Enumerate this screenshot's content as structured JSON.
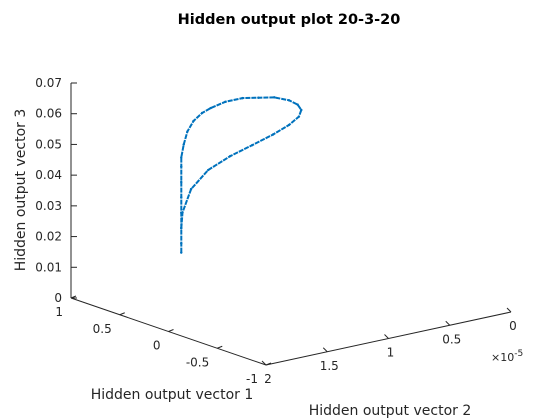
{
  "chart_data": {
    "type": "line3d",
    "title": "Hidden output plot 20-3-20",
    "xlabel": "Hidden output vector 1",
    "ylabel": "Hidden output vector 2",
    "zlabel": "Hidden output vector 3",
    "y_exponent_label": "×10",
    "y_exponent_power": "-5",
    "x_ticks": [
      "1",
      "0.5",
      "0",
      "-0.5",
      "-1"
    ],
    "y_ticks": [
      "2",
      "1.5",
      "1",
      "0.5",
      "0"
    ],
    "z_ticks": [
      "0",
      "0.01",
      "0.02",
      "0.03",
      "0.04",
      "0.05",
      "0.06",
      "0.07"
    ],
    "xlim": [
      -1,
      1
    ],
    "ylim": [
      0,
      2
    ],
    "zlim": [
      0,
      0.07
    ],
    "grid": false,
    "series": [
      {
        "color": "#0072BD",
        "marker": "dot",
        "x": [
          1,
          1,
          1,
          1,
          1,
          1,
          1,
          1,
          1,
          1,
          1,
          1,
          1,
          1,
          1,
          1,
          1,
          1,
          1,
          1,
          1,
          1,
          1,
          1,
          1,
          1,
          1,
          1,
          1
        ],
        "y": [
          1.1,
          1.1,
          1.1,
          1.1,
          1.1,
          1.1,
          1.1,
          1.1,
          1.08,
          1.05,
          1.0,
          0.93,
          0.86,
          0.74,
          0.6,
          0.47,
          0.34,
          0.22,
          0.15,
          0.12,
          0.14,
          0.22,
          0.35,
          0.52,
          0.7,
          0.88,
          1.02,
          1.09,
          1.1
        ],
        "z": [
          0.007,
          0.01,
          0.015,
          0.02,
          0.025,
          0.03,
          0.035,
          0.038,
          0.042,
          0.046,
          0.049,
          0.051,
          0.052,
          0.053,
          0.053,
          0.052,
          0.051,
          0.049,
          0.047,
          0.045,
          0.043,
          0.041,
          0.039,
          0.037,
          0.035,
          0.032,
          0.027,
          0.02,
          0.015
        ]
      }
    ]
  }
}
